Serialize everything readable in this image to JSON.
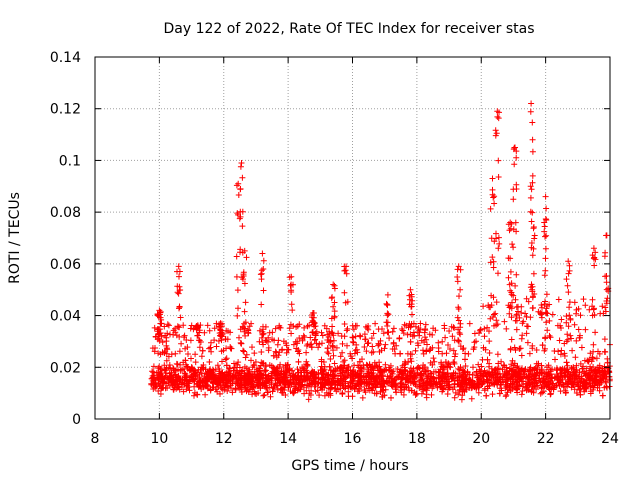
{
  "chart_data": {
    "type": "scatter",
    "title": "Day 122 of 2022, Rate Of TEC Index for receiver stas",
    "xlabel": "GPS time / hours",
    "ylabel": "ROTI / TECUs",
    "xlim": [
      8,
      24
    ],
    "ylim": [
      0,
      0.14
    ],
    "x_ticks": [
      8,
      10,
      12,
      14,
      16,
      18,
      20,
      22,
      24
    ],
    "x_tick_labels": [
      "8",
      "10",
      "12",
      "14",
      "16",
      "18",
      "20",
      "22",
      "24"
    ],
    "y_ticks": [
      0,
      0.02,
      0.04,
      0.06,
      0.08,
      0.1,
      0.12,
      0.14
    ],
    "y_tick_labels": [
      "0",
      "0.02",
      "0.04",
      "0.06",
      "0.08",
      "0.1",
      "0.12",
      "0.14"
    ],
    "grid": true,
    "marker": "+",
    "colors": {
      "points": "#ff0000",
      "axes": "#000000",
      "grid": "#a0a0a0"
    },
    "series": [
      {
        "name": "ROTI",
        "x_range": [
          9.75,
          24
        ],
        "baseline_band": [
          0.005,
          0.03
        ],
        "spikes": [
          {
            "x": 10.0,
            "y_top": 0.042
          },
          {
            "x": 10.6,
            "y_top": 0.059
          },
          {
            "x": 11.2,
            "y_top": 0.036
          },
          {
            "x": 11.9,
            "y_top": 0.037
          },
          {
            "x": 12.45,
            "y_top": 0.091
          },
          {
            "x": 12.55,
            "y_top": 0.099
          },
          {
            "x": 12.65,
            "y_top": 0.065
          },
          {
            "x": 13.2,
            "y_top": 0.064
          },
          {
            "x": 14.1,
            "y_top": 0.055
          },
          {
            "x": 14.8,
            "y_top": 0.041
          },
          {
            "x": 15.4,
            "y_top": 0.052
          },
          {
            "x": 15.8,
            "y_top": 0.059
          },
          {
            "x": 17.1,
            "y_top": 0.048
          },
          {
            "x": 17.8,
            "y_top": 0.05
          },
          {
            "x": 19.3,
            "y_top": 0.059
          },
          {
            "x": 20.35,
            "y_top": 0.093
          },
          {
            "x": 20.5,
            "y_top": 0.119
          },
          {
            "x": 20.9,
            "y_top": 0.076
          },
          {
            "x": 21.05,
            "y_top": 0.105
          },
          {
            "x": 21.55,
            "y_top": 0.122
          },
          {
            "x": 21.6,
            "y_top": 0.094
          },
          {
            "x": 22.0,
            "y_top": 0.086
          },
          {
            "x": 22.7,
            "y_top": 0.061
          },
          {
            "x": 23.5,
            "y_top": 0.066
          },
          {
            "x": 23.9,
            "y_top": 0.071
          }
        ]
      }
    ]
  }
}
